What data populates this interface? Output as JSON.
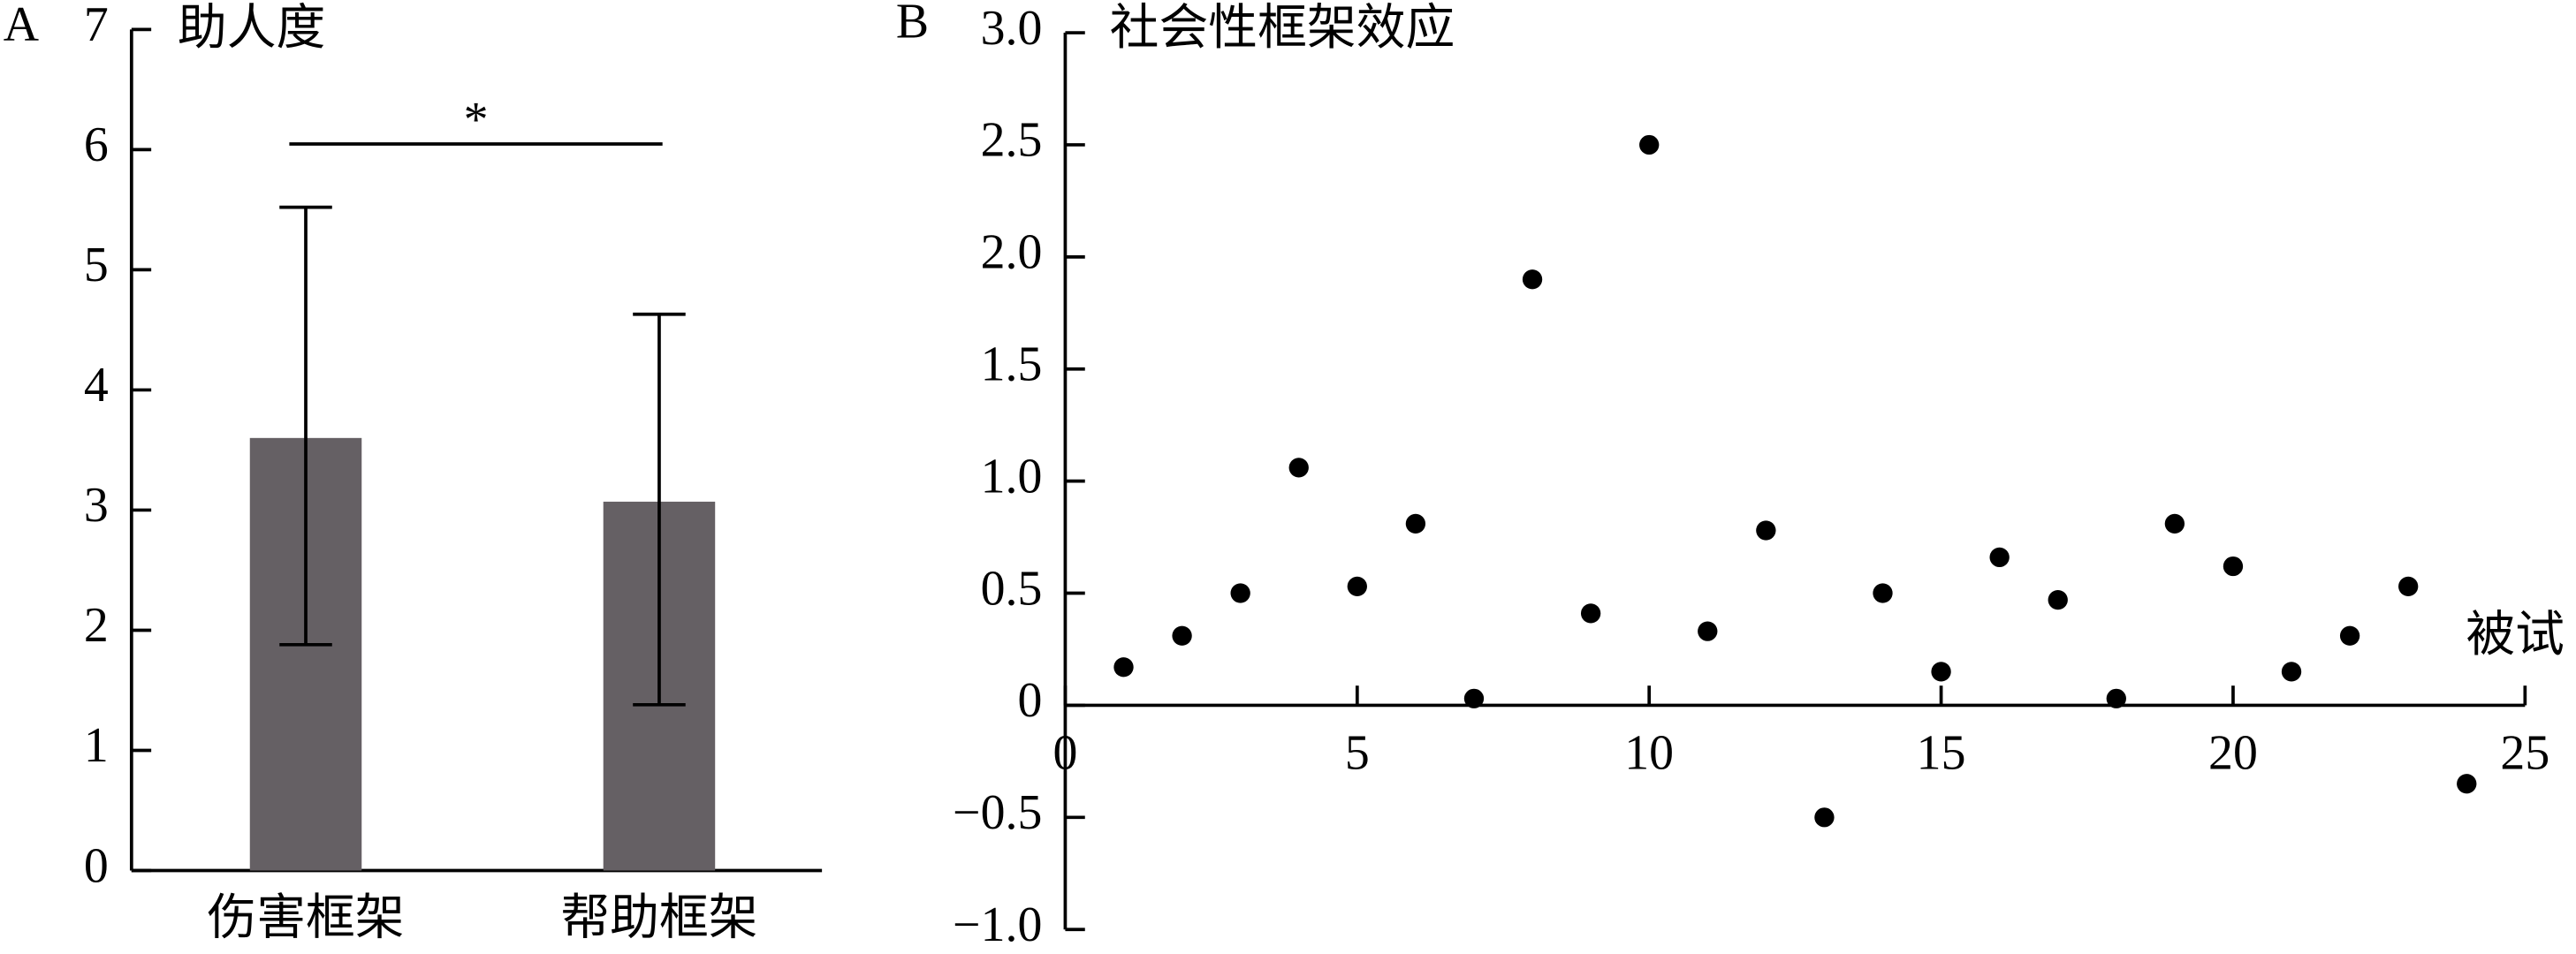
{
  "chart_data": [
    {
      "type": "bar",
      "panel": "A",
      "title": "助人度",
      "categories": [
        "伤害框架",
        "帮助框架"
      ],
      "values": [
        3.6,
        3.07
      ],
      "error_low": [
        1.72,
        1.69
      ],
      "error_high": [
        1.92,
        1.56
      ],
      "color": "#656064",
      "annotation": "*",
      "ylim": [
        0,
        7
      ],
      "yticks": [
        0,
        1,
        2,
        3,
        4,
        5,
        6,
        7
      ]
    },
    {
      "type": "scatter",
      "panel": "B",
      "title": "社会性框架效应",
      "xlabel": "被试",
      "x": [
        1,
        2,
        3,
        4,
        5,
        6,
        7,
        8,
        9,
        10,
        11,
        12,
        13,
        14,
        15,
        16,
        17,
        18,
        19,
        20,
        21,
        22,
        23,
        24
      ],
      "values": [
        0.17,
        0.31,
        0.5,
        1.06,
        0.53,
        0.81,
        0.03,
        1.9,
        0.41,
        2.5,
        0.33,
        0.78,
        -0.5,
        0.5,
        0.15,
        0.66,
        0.47,
        0.03,
        0.81,
        0.62,
        0.15,
        0.31,
        0.53,
        -0.35
      ],
      "color": "#000000",
      "xlim": [
        0,
        25
      ],
      "xticks": [
        0,
        5,
        10,
        15,
        20,
        25
      ],
      "ylim": [
        -1,
        3
      ],
      "yticks": [
        {
          "value": -1,
          "label": "−1.0"
        },
        {
          "value": -0.5,
          "label": "−0.5"
        },
        0,
        {
          "value": 0.5,
          "label": "0.5"
        },
        {
          "value": 1,
          "label": "1.0"
        },
        {
          "value": 1.5,
          "label": "1.5"
        },
        {
          "value": 2,
          "label": "2.0"
        },
        {
          "value": 2.5,
          "label": "2.5"
        },
        {
          "value": 3,
          "label": "3.0"
        }
      ]
    }
  ]
}
